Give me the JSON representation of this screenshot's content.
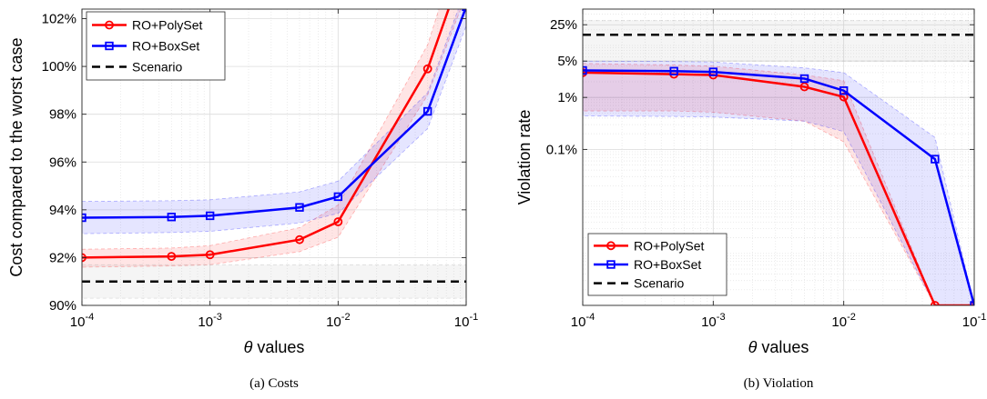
{
  "figure": {
    "subcaptions": [
      "(a)  Costs",
      "(b)  Violation"
    ]
  },
  "chart_data": [
    {
      "type": "line",
      "xscale": "log",
      "x": [
        0.0001,
        0.0005,
        0.001,
        0.005,
        0.01,
        0.05,
        0.1
      ],
      "x_ticks": [
        0.0001,
        0.001,
        0.01,
        0.1
      ],
      "x_tick_labels": [
        [
          "10",
          "-4"
        ],
        [
          "10",
          "-3"
        ],
        [
          "10",
          "-2"
        ],
        [
          "10",
          "-1"
        ]
      ],
      "xlim": [
        0.0001,
        0.1
      ],
      "xlabel": [
        "θ",
        " values"
      ],
      "ylabel": "Cost compared to the worst case",
      "ylim": [
        90,
        102.4
      ],
      "y_ticks": [
        90,
        92,
        94,
        96,
        98,
        100,
        102
      ],
      "y_tick_labels": [
        "90%",
        "92%",
        "94%",
        "96%",
        "98%",
        "100%",
        "102%"
      ],
      "grid": true,
      "legend_position": "top-left",
      "series": [
        {
          "name": "RO+PolySet",
          "color": "#ff0000",
          "marker": "circle",
          "values": [
            92.0,
            92.05,
            92.12,
            92.75,
            93.5,
            99.9,
            104.5
          ],
          "band_low": [
            91.6,
            91.65,
            91.7,
            92.25,
            92.85,
            98.8,
            103.0
          ],
          "band_high": [
            92.35,
            92.4,
            92.5,
            93.25,
            94.2,
            100.9,
            106.0
          ]
        },
        {
          "name": "RO+BoxSet",
          "color": "#0000ff",
          "marker": "square",
          "values": [
            93.67,
            93.7,
            93.75,
            94.1,
            94.55,
            98.12,
            102.5
          ],
          "band_low": [
            93.0,
            93.05,
            93.1,
            93.45,
            93.85,
            97.4,
            101.7
          ],
          "band_high": [
            94.35,
            94.38,
            94.42,
            94.75,
            95.2,
            98.9,
            103.3
          ]
        },
        {
          "name": "Scenario",
          "color": "#000000",
          "style": "dashed",
          "values": [
            91.0,
            91.0,
            91.0,
            91.0,
            91.0,
            91.0,
            91.0
          ],
          "band_low": [
            90.3,
            90.3,
            90.3,
            90.3,
            90.3,
            90.3,
            90.3
          ],
          "band_high": [
            91.7,
            91.7,
            91.7,
            91.7,
            91.7,
            91.7,
            91.7
          ]
        }
      ]
    },
    {
      "type": "line",
      "xscale": "log",
      "yscale": "log",
      "x": [
        0.0001,
        0.0005,
        0.001,
        0.005,
        0.01,
        0.05,
        0.1
      ],
      "x_ticks": [
        0.0001,
        0.001,
        0.01,
        0.1
      ],
      "x_tick_labels": [
        [
          "10",
          "-4"
        ],
        [
          "10",
          "-3"
        ],
        [
          "10",
          "-2"
        ],
        [
          "10",
          "-1"
        ]
      ],
      "xlim": [
        0.0001,
        0.1
      ],
      "xlabel": [
        "θ",
        " values"
      ],
      "ylabel": "Violation rate",
      "ylim": [
        1e-06,
        0.5
      ],
      "y_ticks": [
        0.001,
        0.01,
        0.05,
        0.25
      ],
      "y_tick_labels": [
        "0.1%",
        "1%",
        "5%",
        "25%"
      ],
      "grid": true,
      "legend_position": "bottom-left",
      "series": [
        {
          "name": "RO+PolySet",
          "color": "#ff0000",
          "marker": "circle",
          "values": [
            0.03,
            0.028,
            0.027,
            0.016,
            0.0102,
            1e-06,
            1e-06
          ],
          "band_low": [
            0.0055,
            0.0055,
            0.0052,
            0.0035,
            0.0014,
            1e-06,
            1e-06
          ],
          "band_high": [
            0.045,
            0.042,
            0.04,
            0.027,
            0.021,
            1e-06,
            1e-06
          ]
        },
        {
          "name": "RO+BoxSet",
          "color": "#0000ff",
          "marker": "square",
          "values": [
            0.033,
            0.032,
            0.031,
            0.023,
            0.0135,
            0.00065,
            1e-06
          ],
          "band_low": [
            0.0044,
            0.0043,
            0.0042,
            0.0035,
            0.0022,
            1e-06,
            1e-06
          ],
          "band_high": [
            0.05,
            0.049,
            0.048,
            0.037,
            0.03,
            0.0017,
            1e-06
          ]
        },
        {
          "name": "Scenario",
          "color": "#000000",
          "style": "dashed",
          "values": [
            0.16,
            0.16,
            0.16,
            0.16,
            0.16,
            0.16,
            0.16
          ],
          "band_low": [
            0.05,
            0.05,
            0.05,
            0.05,
            0.05,
            0.05,
            0.05
          ],
          "band_high": [
            0.3,
            0.3,
            0.3,
            0.3,
            0.3,
            0.3,
            0.3
          ]
        }
      ]
    }
  ]
}
